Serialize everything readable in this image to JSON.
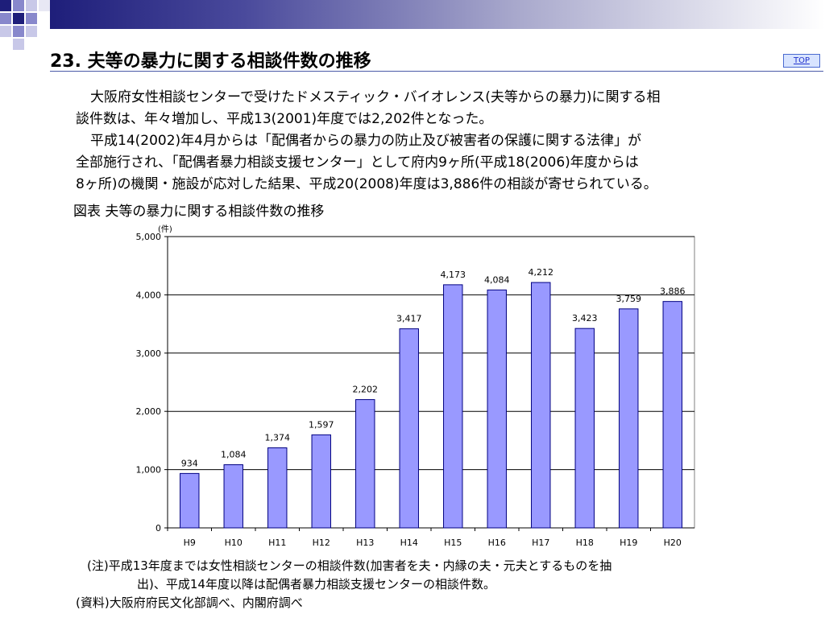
{
  "header": {
    "title": "23. 夫等の暴力に関する相談件数の推移",
    "top_link": "TOP"
  },
  "body_text": {
    "line1": "大阪府女性相談センターで受けたドメスティック・バイオレンス(夫等からの暴力)に関する相",
    "line2": "談件数は、年々増加し、平成13(2001)年度では2,202件となった。",
    "line3": "平成14(2002)年4月からは「配偶者からの暴力の防止及び被害者の保護に関する法律」が",
    "line4": "全部施行され、「配偶者暴力相談支援センター」として府内9ヶ所(平成18(2006)年度からは",
    "line5": "8ヶ所)の機関・施設が応対した結果、平成20(2008)年度は3,886件の相談が寄せられている。"
  },
  "figure": {
    "caption": "図表  夫等の暴力に関する相談件数の推移"
  },
  "chart_data": {
    "type": "bar",
    "ylabel": "(件)",
    "categories": [
      "H9",
      "H10",
      "H11",
      "H12",
      "H13",
      "H14",
      "H15",
      "H16",
      "H17",
      "H18",
      "H19",
      "H20"
    ],
    "values": [
      934,
      1084,
      1374,
      1597,
      2202,
      3417,
      4173,
      4084,
      4212,
      3423,
      3759,
      3886
    ],
    "value_labels": [
      "934",
      "1,084",
      "1,374",
      "1,597",
      "2,202",
      "3,417",
      "4,173",
      "4,084",
      "4,212",
      "3,423",
      "3,759",
      "3,886"
    ],
    "ylim": [
      0,
      5000
    ],
    "yticks": [
      0,
      1000,
      2000,
      3000,
      4000,
      5000
    ],
    "ytick_labels": [
      "0",
      "1,000",
      "2,000",
      "3,000",
      "4,000",
      "5,000"
    ],
    "grid": true,
    "bar_color": "#9999ff",
    "bar_border": "#000080"
  },
  "notes": {
    "note1": "(注)平成13年度までは女性相談センターの相談件数(加害者を夫・内縁の夫・元夫とするものを抽",
    "note2": "出)、平成14年度以降は配偶者暴力相談支援センターの相談件数。",
    "source": "(資料)大阪府府民文化部調べ、内閣府調べ"
  }
}
